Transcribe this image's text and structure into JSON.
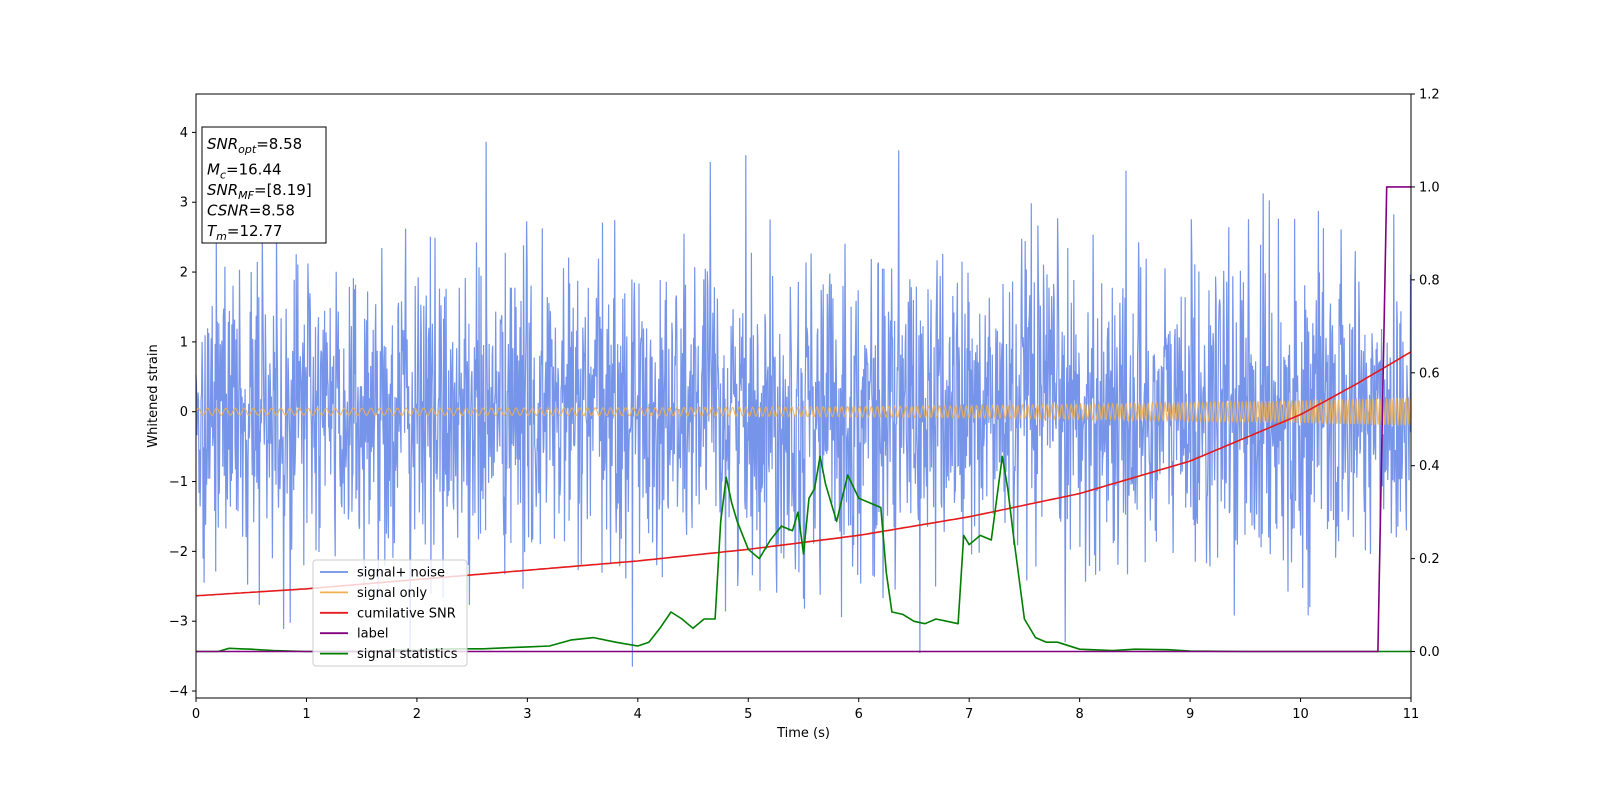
{
  "chart_data": {
    "type": "line",
    "title": "",
    "xlabel": "Time (s)",
    "ylabel": "Whitened strain",
    "xlim": [
      0,
      11
    ],
    "ylim_left": [
      -4.1,
      4.55
    ],
    "ylim_right": [
      -0.1,
      1.2
    ],
    "x_ticks": [
      0,
      1,
      2,
      3,
      4,
      5,
      6,
      7,
      8,
      9,
      10,
      11
    ],
    "y_ticks_left": [
      -4,
      -3,
      -2,
      -1,
      0,
      1,
      2,
      3,
      4
    ],
    "y_ticks_right": [
      0.0,
      0.2,
      0.4,
      0.6,
      0.8,
      1.0,
      1.2
    ],
    "grid": false,
    "legend_position": "lower-left",
    "series": [
      {
        "key": "noise",
        "name": "signal+ noise",
        "axis": "left",
        "color": "#6f8ee8",
        "sigma": 1.1
      },
      {
        "key": "signal",
        "name": "signal only",
        "axis": "left",
        "color": "#f0b050",
        "amplitude_start": 0.05,
        "amplitude_end": 0.2,
        "frequency_start": 12,
        "frequency_end": 34
      },
      {
        "key": "csnr",
        "name": "cumilative SNR",
        "axis": "right",
        "color": "#e41a1c",
        "points": [
          [
            0,
            0.12
          ],
          [
            1,
            0.135
          ],
          [
            2,
            0.155
          ],
          [
            3,
            0.175
          ],
          [
            4,
            0.195
          ],
          [
            5,
            0.22
          ],
          [
            6,
            0.25
          ],
          [
            7,
            0.29
          ],
          [
            8,
            0.34
          ],
          [
            9,
            0.41
          ],
          [
            10,
            0.51
          ],
          [
            10.5,
            0.575
          ],
          [
            11,
            0.645
          ]
        ]
      },
      {
        "key": "label",
        "name": "label",
        "axis": "right",
        "color": "#800080",
        "points": [
          [
            0,
            0
          ],
          [
            10.7,
            0
          ],
          [
            10.78,
            1
          ],
          [
            11,
            1
          ]
        ]
      },
      {
        "key": "stats",
        "name": "signal statistics",
        "axis": "right",
        "color": "#007f00",
        "points": [
          [
            0,
            0
          ],
          [
            0.2,
            0
          ],
          [
            0.3,
            0.007
          ],
          [
            0.4,
            0.006
          ],
          [
            0.5,
            0.005
          ],
          [
            0.7,
            0.002
          ],
          [
            1.0,
            0.0
          ],
          [
            1.5,
            0.0
          ],
          [
            1.8,
            0.003
          ],
          [
            2.0,
            0.002
          ],
          [
            2.2,
            0.005
          ],
          [
            2.4,
            0.006
          ],
          [
            2.6,
            0.006
          ],
          [
            2.8,
            0.008
          ],
          [
            3.0,
            0.01
          ],
          [
            3.2,
            0.012
          ],
          [
            3.4,
            0.025
          ],
          [
            3.6,
            0.03
          ],
          [
            3.8,
            0.02
          ],
          [
            4.0,
            0.012
          ],
          [
            4.1,
            0.02
          ],
          [
            4.2,
            0.05
          ],
          [
            4.3,
            0.085
          ],
          [
            4.4,
            0.07
          ],
          [
            4.5,
            0.05
          ],
          [
            4.6,
            0.07
          ],
          [
            4.7,
            0.07
          ],
          [
            4.75,
            0.28
          ],
          [
            4.8,
            0.375
          ],
          [
            4.85,
            0.32
          ],
          [
            4.9,
            0.28
          ],
          [
            5.0,
            0.22
          ],
          [
            5.1,
            0.2
          ],
          [
            5.2,
            0.24
          ],
          [
            5.3,
            0.27
          ],
          [
            5.4,
            0.26
          ],
          [
            5.45,
            0.3
          ],
          [
            5.5,
            0.21
          ],
          [
            5.55,
            0.33
          ],
          [
            5.6,
            0.35
          ],
          [
            5.65,
            0.42
          ],
          [
            5.7,
            0.36
          ],
          [
            5.8,
            0.28
          ],
          [
            5.9,
            0.38
          ],
          [
            6.0,
            0.33
          ],
          [
            6.1,
            0.32
          ],
          [
            6.2,
            0.31
          ],
          [
            6.25,
            0.17
          ],
          [
            6.3,
            0.085
          ],
          [
            6.4,
            0.08
          ],
          [
            6.5,
            0.065
          ],
          [
            6.6,
            0.06
          ],
          [
            6.7,
            0.07
          ],
          [
            6.8,
            0.065
          ],
          [
            6.9,
            0.06
          ],
          [
            6.95,
            0.25
          ],
          [
            7.0,
            0.23
          ],
          [
            7.1,
            0.25
          ],
          [
            7.2,
            0.24
          ],
          [
            7.3,
            0.42
          ],
          [
            7.35,
            0.35
          ],
          [
            7.4,
            0.25
          ],
          [
            7.5,
            0.07
          ],
          [
            7.6,
            0.03
          ],
          [
            7.7,
            0.02
          ],
          [
            7.8,
            0.02
          ],
          [
            8.0,
            0.005
          ],
          [
            8.3,
            0.002
          ],
          [
            8.5,
            0.005
          ],
          [
            8.8,
            0.004
          ],
          [
            9.0,
            0.001
          ],
          [
            9.5,
            0.0
          ],
          [
            11,
            0.0
          ]
        ]
      }
    ]
  },
  "annotation": {
    "lines": [
      {
        "base": "SNR",
        "sub": "opt",
        "value": "=8.58"
      },
      {
        "base": "M",
        "sub": "c",
        "value": "=16.44"
      },
      {
        "base": "SNR",
        "sub": "MF",
        "value": "=[8.19]"
      },
      {
        "base": "CSNR",
        "sub": "",
        "value": "=8.58"
      },
      {
        "base": "T",
        "sub": "m",
        "value": "=12.77"
      }
    ]
  }
}
